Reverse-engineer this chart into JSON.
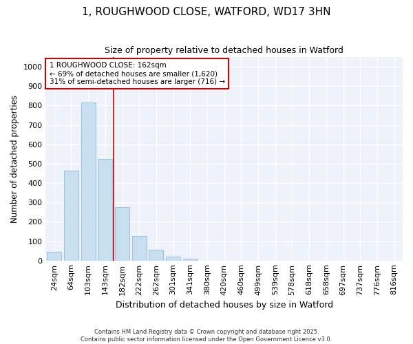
{
  "title": "1, ROUGHWOOD CLOSE, WATFORD, WD17 3HN",
  "subtitle": "Size of property relative to detached houses in Watford",
  "xlabel": "Distribution of detached houses by size in Watford",
  "ylabel": "Number of detached properties",
  "categories": [
    "24sqm",
    "64sqm",
    "103sqm",
    "143sqm",
    "182sqm",
    "222sqm",
    "262sqm",
    "301sqm",
    "341sqm",
    "380sqm",
    "420sqm",
    "460sqm",
    "499sqm",
    "539sqm",
    "578sqm",
    "618sqm",
    "658sqm",
    "697sqm",
    "737sqm",
    "776sqm",
    "816sqm"
  ],
  "values": [
    45,
    465,
    815,
    525,
    275,
    125,
    55,
    20,
    10,
    0,
    0,
    0,
    0,
    0,
    0,
    0,
    0,
    0,
    0,
    0,
    0
  ],
  "bar_fill_color": "#c8dff0",
  "bar_edge_color": "#a0c4e0",
  "vline_color": "#cc0000",
  "vline_index": 3.5,
  "annotation_text": "1 ROUGHWOOD CLOSE: 162sqm\n← 69% of detached houses are smaller (1,620)\n31% of semi-detached houses are larger (716) →",
  "ylim": [
    0,
    1050
  ],
  "yticks": [
    0,
    100,
    200,
    300,
    400,
    500,
    600,
    700,
    800,
    900,
    1000
  ],
  "fig_background": "#ffffff",
  "plot_background": "#eef3fb",
  "grid_color": "#ffffff",
  "title_fontsize": 11,
  "subtitle_fontsize": 9,
  "footer_line1": "Contains HM Land Registry data © Crown copyright and database right 2025.",
  "footer_line2": "Contains public sector information licensed under the Open Government Licence v3.0."
}
